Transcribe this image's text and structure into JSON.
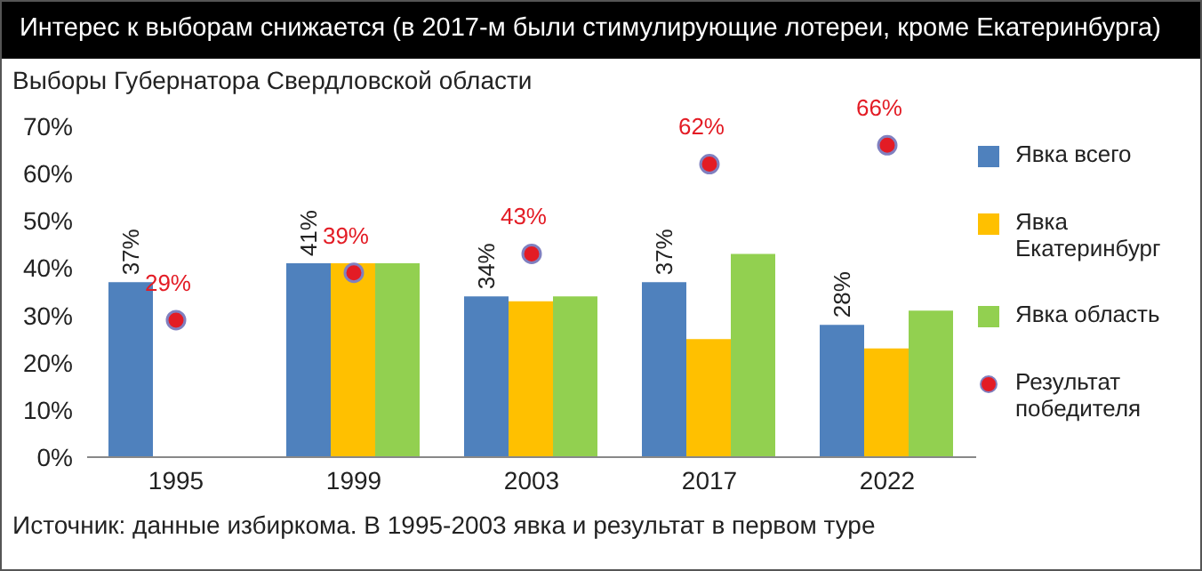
{
  "chart_data": {
    "type": "bar",
    "title": "Интерес к выборам снижается (в 2017-м были стимулирующие лотереи, кроме Екатеринбурга)",
    "subtitle": "Выборы Губернатора Свердловской области",
    "annotations": [
      "Источник: данные избиркома. В 1995-2003 явка и результат в первом туре"
    ],
    "categories": [
      "1995",
      "1999",
      "2003",
      "2017",
      "2022"
    ],
    "series": [
      {
        "name": "Явка всего",
        "color": "#4f81bd",
        "values": [
          37,
          41,
          34,
          37,
          28
        ],
        "value_labels": [
          "37%",
          "41%",
          "34%",
          "37%",
          "28%"
        ]
      },
      {
        "name": "Явка Екатеринбург",
        "color": "#ffc000",
        "values": [
          null,
          41,
          33,
          25,
          23
        ]
      },
      {
        "name": "Явка область",
        "color": "#92d050",
        "values": [
          null,
          41,
          34,
          43,
          31
        ]
      },
      {
        "name": "Результат победителя",
        "type": "scatter",
        "color": "#e31c25",
        "values": [
          29,
          39,
          43,
          62,
          66
        ],
        "value_labels": [
          "29%",
          "39%",
          "43%",
          "62%",
          "66%"
        ]
      }
    ],
    "ylim": [
      0,
      70
    ],
    "yticks": [
      {
        "value": 0,
        "label": "0%"
      },
      {
        "value": 10,
        "label": "10%"
      },
      {
        "value": 20,
        "label": "20%"
      },
      {
        "value": 30,
        "label": "30%"
      },
      {
        "value": 40,
        "label": "40%"
      },
      {
        "value": 50,
        "label": "50%"
      },
      {
        "value": 60,
        "label": "60%"
      },
      {
        "value": 70,
        "label": "70%"
      }
    ],
    "legend": "right",
    "marker": "circle"
  }
}
